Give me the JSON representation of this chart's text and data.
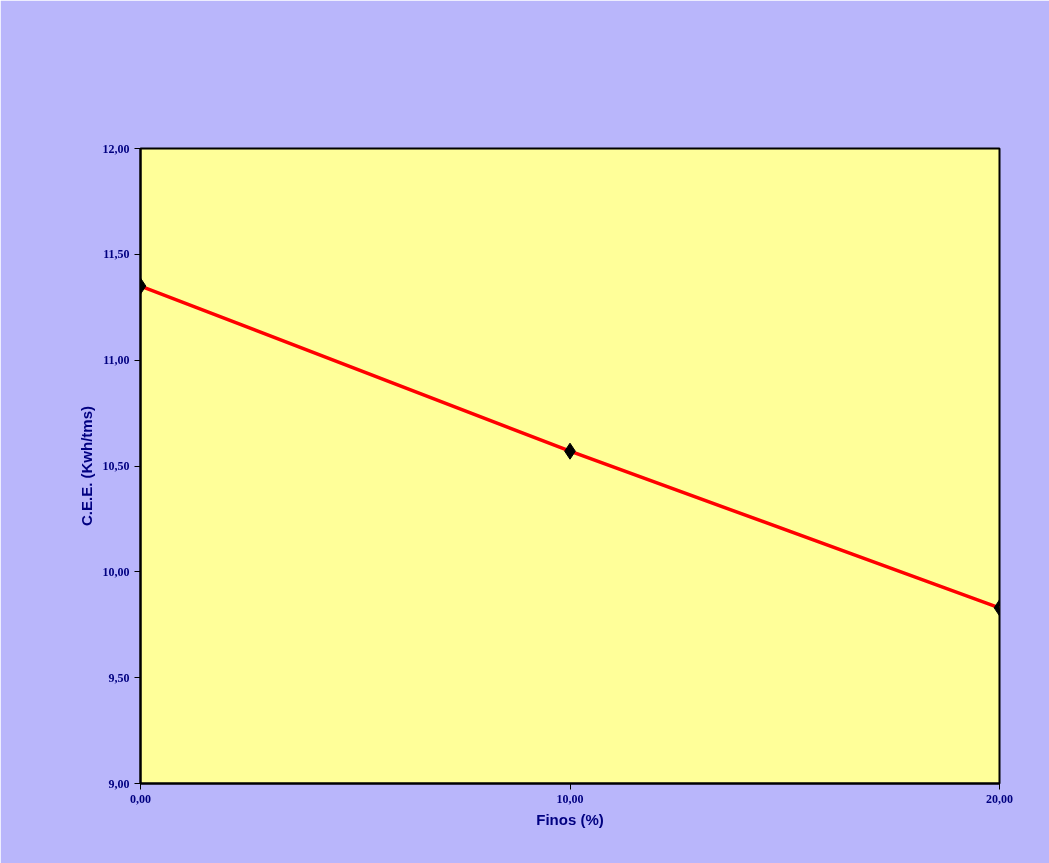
{
  "chart_data": {
    "type": "line",
    "xlabel": "Finos (%)",
    "ylabel": "C.E.E. (Kwh/tms)",
    "x": [
      0,
      10,
      20
    ],
    "series": [
      {
        "color": "#ff0000",
        "values": [
          11.35,
          10.57,
          9.83
        ]
      }
    ],
    "xlim": [
      0,
      20
    ],
    "ylim": [
      9,
      12
    ],
    "xticks": [
      {
        "value": 0,
        "label": "0,00"
      },
      {
        "value": 10,
        "label": "10,00"
      },
      {
        "value": 20,
        "label": "20,00"
      }
    ],
    "yticks": [
      {
        "value": 9,
        "label": "9,00"
      },
      {
        "value": 9.5,
        "label": "9,50"
      },
      {
        "value": 10,
        "label": "10,00"
      },
      {
        "value": 10.5,
        "label": "10,50"
      },
      {
        "value": 11,
        "label": "11,00"
      },
      {
        "value": 11.5,
        "label": "11,50"
      },
      {
        "value": 12,
        "label": "12,00"
      }
    ],
    "grid": false,
    "marker": "diamond",
    "line_style": "solid"
  }
}
